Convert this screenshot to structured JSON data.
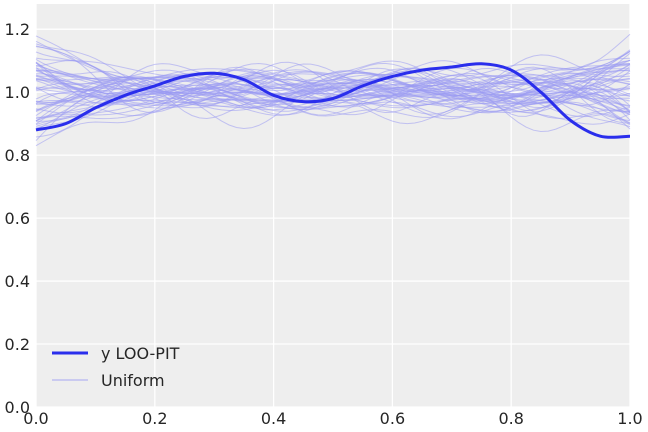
{
  "chart_data": {
    "type": "line",
    "title": "",
    "xlabel": "",
    "ylabel": "",
    "xlim": [
      0.0,
      1.0
    ],
    "ylim": [
      0.0,
      1.28
    ],
    "grid": true,
    "legend_position": "bottom-left",
    "x_ticks": [
      "0.0",
      "0.2",
      "0.4",
      "0.6",
      "0.8",
      "1.0"
    ],
    "y_ticks": [
      "0.0",
      "0.2",
      "0.4",
      "0.6",
      "0.8",
      "1.0",
      "1.2"
    ],
    "series": [
      {
        "name": "y LOO-PIT",
        "color": "#2a2eec",
        "x": [
          0.0,
          0.05,
          0.1,
          0.15,
          0.2,
          0.25,
          0.3,
          0.35,
          0.4,
          0.45,
          0.5,
          0.55,
          0.6,
          0.65,
          0.7,
          0.75,
          0.8,
          0.85,
          0.9,
          0.95,
          1.0
        ],
        "y": [
          0.88,
          0.9,
          0.95,
          0.99,
          1.02,
          1.05,
          1.06,
          1.04,
          0.99,
          0.97,
          0.98,
          1.02,
          1.05,
          1.07,
          1.08,
          1.09,
          1.07,
          1.0,
          0.91,
          0.86,
          0.86
        ]
      },
      {
        "name": "Uniform",
        "color": "#9a9bf3",
        "sample_count": 60,
        "band": [
          0.73,
          1.27
        ]
      }
    ],
    "legend": [
      {
        "label": "y LOO-PIT"
      },
      {
        "label": "Uniform"
      }
    ]
  }
}
